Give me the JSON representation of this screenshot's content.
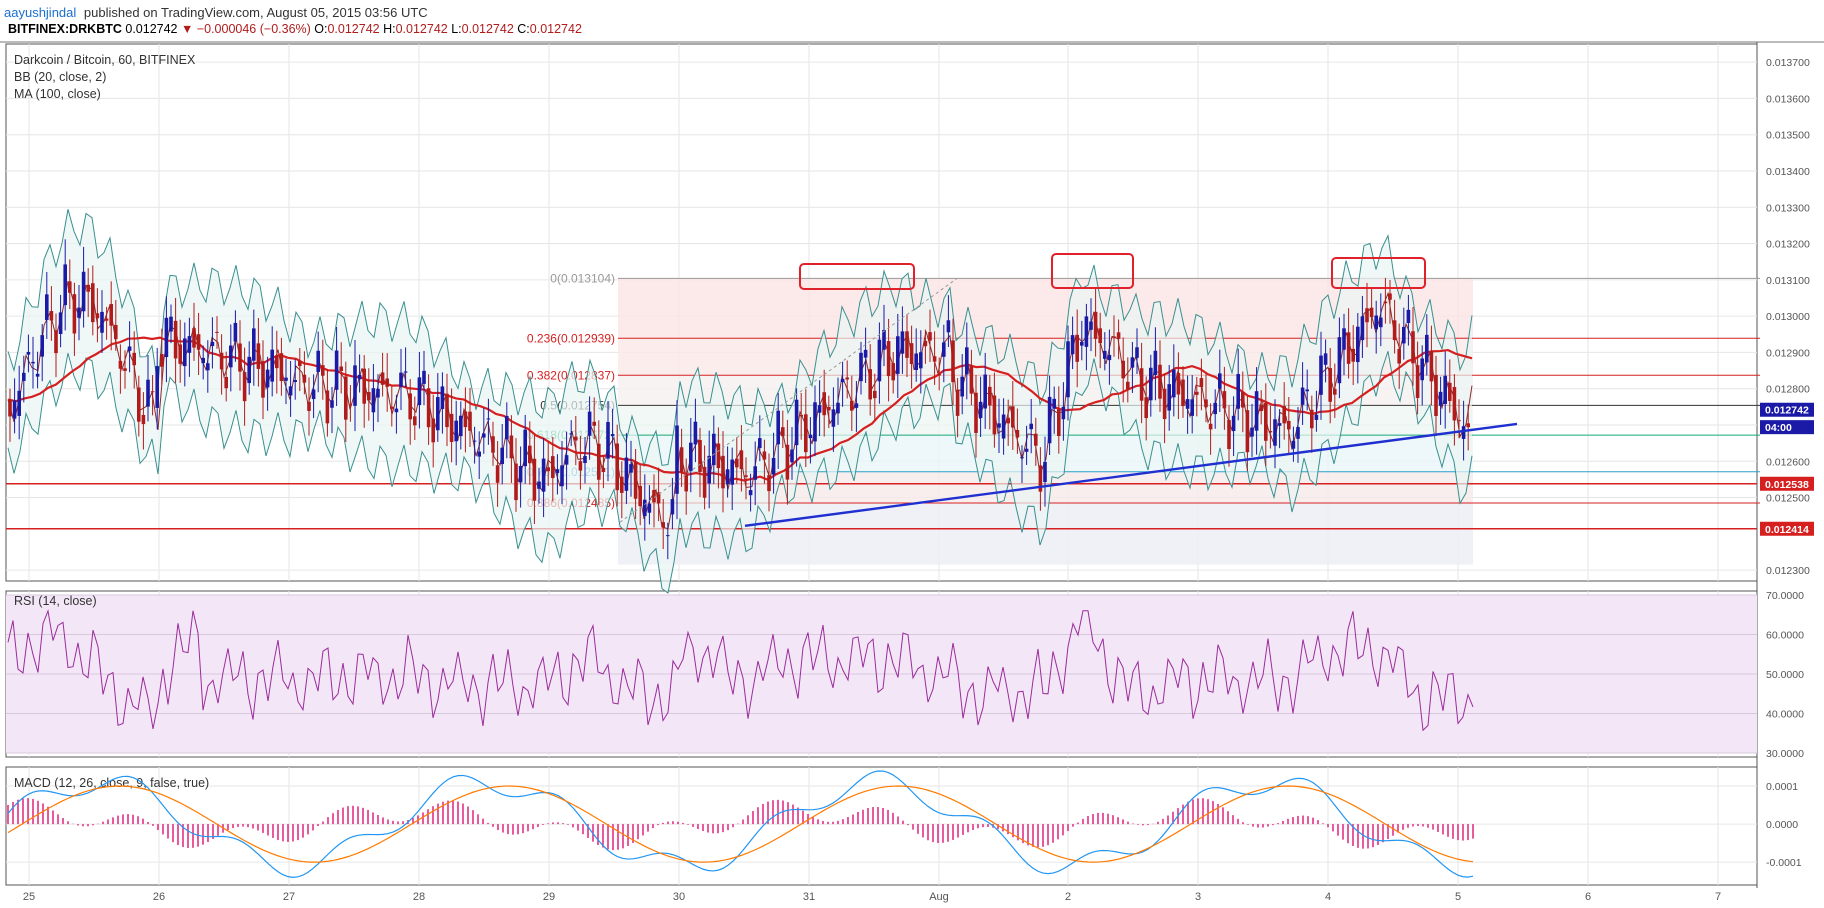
{
  "header": {
    "author": "aayushjindal",
    "published": "published on TradingView.com, August 05, 2015 03:56 UTC"
  },
  "symbol_bar": {
    "symbol": "BITFINEX:DRKBTC",
    "last": "0.012742",
    "change": "▼ −0.000046 (−0.36%)",
    "o_label": "O:",
    "o": "0.012742",
    "h_label": "H:",
    "h": "0.012742",
    "l_label": "L:",
    "l": "0.012742",
    "c_label": "C:",
    "c": "0.012742"
  },
  "legend": {
    "title": "Darkcoin / Bitcoin, 60, BITFINEX",
    "bb": "BB (20, close, 2)",
    "ma": "MA (100, close)",
    "rsi": "RSI (14, close)",
    "macd": "MACD (12, 26, close, 9, false, true)"
  },
  "colors": {
    "up": "#1a1aa6",
    "down": "#b01c1c",
    "bb": "#3a8f8f",
    "ma": "#d62020",
    "trend": "#1f2fd0",
    "rsi": "#9b2c9b",
    "macd": "#2196f3",
    "signal": "#ff7a00",
    "hist": "#e0237a",
    "callout": "#e0202a"
  },
  "chart_data": [
    {
      "type": "candlestick",
      "title": "Darkcoin / Bitcoin, 60, BITFINEX",
      "x_ticks": [
        "25",
        "26",
        "27",
        "28",
        "29",
        "30",
        "31",
        "Aug",
        "2",
        "3",
        "4",
        "5",
        "6",
        "7"
      ],
      "y_ticks": [
        "0.013700",
        "0.013600",
        "0.013500",
        "0.013400",
        "0.013300",
        "0.013200",
        "0.013100",
        "0.013000",
        "0.012900",
        "0.012800",
        "0.012700",
        "0.012600",
        "0.012500",
        "0.012300"
      ],
      "ylim": [
        0.01227,
        0.01375
      ],
      "price_labels": [
        {
          "text": "0.012742",
          "value": 0.012742,
          "color": "#1a1aa6"
        },
        {
          "text": "04:00",
          "value": 0.012694,
          "color": "#1a1aa6"
        },
        {
          "text": "0.012538",
          "value": 0.012538,
          "color": "#d62020"
        },
        {
          "text": "0.012414",
          "value": 0.012414,
          "color": "#d62020"
        }
      ],
      "fib_levels": [
        {
          "label": "0(0.013104)",
          "value": 0.013104,
          "color": "#999999"
        },
        {
          "label": "0.236(0.012939)",
          "value": 0.012939,
          "color": "#d62020"
        },
        {
          "label": "0.382(0.012837)",
          "value": 0.012837,
          "color": "#d62020"
        },
        {
          "label": "0.5(0.012754)",
          "value": 0.012754,
          "color": "#333333"
        },
        {
          "label": "0.618(0.012672)",
          "value": 0.012672,
          "color": "#17a878"
        },
        {
          "label": "0.764(0.012571)",
          "value": 0.012571,
          "color": "#2aa0c8"
        },
        {
          "label": "0.886(0.012485)",
          "value": 0.012485,
          "color": "#d62020"
        }
      ],
      "horizontal_lines": [
        0.012538,
        0.012414
      ],
      "trendline": {
        "x1": 30.55,
        "y1": 0.012422,
        "x2": 5.45,
        "y2": 0.012703
      },
      "annotations": [
        "resistance box near 31",
        "resistance box near 2",
        "resistance box near 4-5"
      ]
    },
    {
      "type": "line",
      "title": "RSI (14, close)",
      "y_ticks": [
        "70.0000",
        "60.0000",
        "50.0000",
        "40.0000",
        "30.0000"
      ],
      "ylim": [
        29,
        71
      ]
    },
    {
      "type": "line",
      "title": "MACD (12, 26, close, 9, false, true)",
      "y_ticks": [
        "0.0001",
        "0.0000",
        "-0.0001"
      ],
      "ylim": [
        -0.00016,
        0.00015
      ]
    }
  ]
}
